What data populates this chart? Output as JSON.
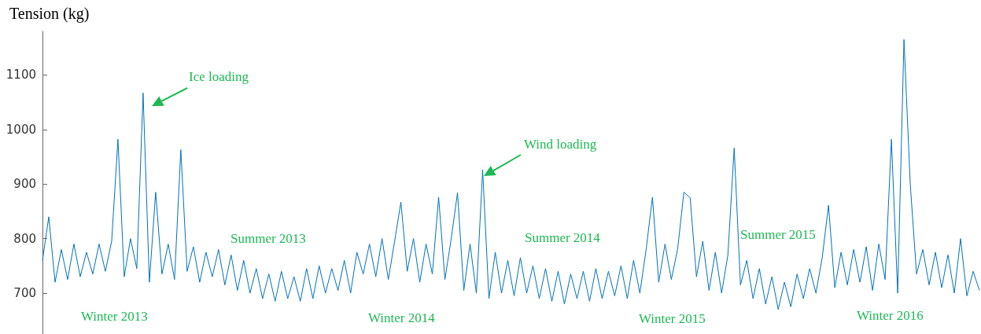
{
  "chart_data": {
    "type": "line",
    "ylabel": "Tension (kg)",
    "categories": [
      null,
      null,
      null,
      null,
      null,
      null,
      null,
      null,
      null,
      null,
      null,
      null,
      null,
      null,
      null,
      null,
      null,
      null,
      null,
      null,
      null,
      null,
      null,
      null,
      null,
      null,
      null,
      null,
      null,
      null,
      null,
      null,
      null,
      null,
      null,
      null,
      null,
      null,
      null,
      null,
      null,
      null,
      null,
      null,
      null,
      null,
      null,
      null,
      null,
      null,
      null,
      null,
      null,
      null,
      null,
      null,
      null,
      null,
      null,
      null,
      null,
      null,
      null,
      null,
      null,
      null,
      null,
      null,
      null,
      null,
      null,
      null,
      null,
      null,
      null,
      null,
      null,
      null,
      null,
      null,
      null,
      null,
      null,
      null,
      null,
      null,
      null,
      null,
      null,
      null,
      null,
      null,
      null,
      null,
      null,
      null,
      null,
      null,
      null,
      null,
      null,
      null,
      null,
      null,
      null,
      null,
      null,
      null,
      null,
      null,
      null,
      null,
      null,
      null,
      null,
      null,
      null,
      null,
      null,
      null,
      null,
      null,
      null,
      null,
      null,
      null,
      null,
      null,
      null,
      null,
      null,
      null,
      null,
      null,
      null,
      null,
      null,
      null,
      null,
      null,
      null,
      null,
      null,
      null,
      null,
      null,
      null,
      null,
      null,
      null
    ],
    "series": [
      {
        "color": "#0072bd",
        "values": [
          760,
          840,
          720,
          780,
          725,
          790,
          730,
          775,
          735,
          790,
          740,
          795,
          982,
          730,
          800,
          745,
          1067,
          720,
          885,
          735,
          790,
          725,
          963,
          740,
          785,
          720,
          775,
          730,
          780,
          715,
          770,
          705,
          760,
          700,
          745,
          690,
          735,
          685,
          740,
          690,
          730,
          685,
          745,
          690,
          750,
          700,
          745,
          705,
          760,
          700,
          775,
          735,
          790,
          730,
          800,
          725,
          795,
          867,
          740,
          800,
          720,
          790,
          735,
          876,
          725,
          800,
          884,
          705,
          790,
          700,
          926,
          690,
          775,
          700,
          760,
          695,
          765,
          700,
          750,
          690,
          745,
          685,
          740,
          680,
          735,
          690,
          740,
          685,
          745,
          690,
          740,
          695,
          750,
          690,
          760,
          700,
          780,
          876,
          720,
          790,
          725,
          780,
          885,
          875,
          730,
          795,
          705,
          775,
          700,
          770,
          966,
          715,
          760,
          690,
          745,
          680,
          730,
          670,
          720,
          675,
          735,
          690,
          745,
          700,
          765,
          861,
          710,
          775,
          715,
          780,
          720,
          785,
          705,
          790,
          725,
          982,
          700,
          1165,
          900,
          735,
          780,
          715,
          775,
          710,
          770,
          700,
          800,
          695,
          740,
          705
        ]
      }
    ],
    "ylim": [
      625,
      1180
    ],
    "yticks": [
      700,
      800,
      900,
      1000,
      1100
    ],
    "tick_labels": "y",
    "marker": "none",
    "line_style": "solid",
    "annotations": [
      "Ice loading",
      "Wind loading",
      "Summer 2013",
      "Summer 2014",
      "Summer 2015",
      "Winter 2013",
      "Winter 2014",
      "Winter 2015",
      "Winter 2016"
    ]
  }
}
